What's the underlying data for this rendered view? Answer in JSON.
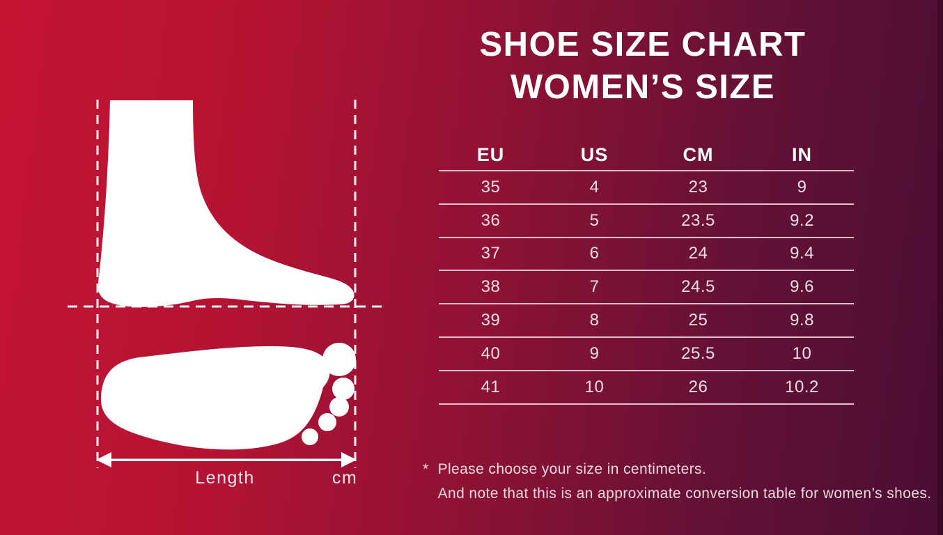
{
  "title": {
    "line1": "SHOE SIZE CHART",
    "line2": "WOMEN’S SIZE"
  },
  "size_table": {
    "columns": [
      "EU",
      "US",
      "CM",
      "IN"
    ],
    "rows": [
      [
        "35",
        "4",
        "23",
        "9"
      ],
      [
        "36",
        "5",
        "23.5",
        "9.2"
      ],
      [
        "37",
        "6",
        "24",
        "9.4"
      ],
      [
        "38",
        "7",
        "24.5",
        "9.6"
      ],
      [
        "39",
        "8",
        "25",
        "9.8"
      ],
      [
        "40",
        "9",
        "25.5",
        "10"
      ],
      [
        "41",
        "10",
        "26",
        "10.2"
      ]
    ]
  },
  "diagram": {
    "length_label": "Length",
    "unit_label": "cm"
  },
  "footnote": {
    "marker": "*",
    "line1": "Please choose your size in centimeters.",
    "line2": "And note that this is an approximate conversion table for women’s shoes."
  },
  "colors": {
    "bg_gradient_left": "#c41434",
    "bg_gradient_right": "#4a0e34",
    "foot_silhouette": "#ffffff",
    "title_text": "#ffffff",
    "cell_text": "#f2dee6",
    "divider_line": "#f3d8e3",
    "dashed_guide": "#ffffff"
  },
  "chart_data": {
    "type": "table",
    "title": "SHOE SIZE CHART WOMEN’S SIZE",
    "columns": [
      "EU",
      "US",
      "CM",
      "IN"
    ],
    "rows": [
      [
        35,
        4,
        23,
        9
      ],
      [
        36,
        5,
        23.5,
        9.2
      ],
      [
        37,
        6,
        24,
        9.4
      ],
      [
        38,
        7,
        24.5,
        9.6
      ],
      [
        39,
        8,
        25,
        9.8
      ],
      [
        40,
        9,
        25.5,
        10
      ],
      [
        41,
        10,
        26,
        10.2
      ]
    ],
    "notes": [
      "Please choose your size in centimeters.",
      "And note that this is an approximate conversion table for women’s shoes."
    ]
  }
}
